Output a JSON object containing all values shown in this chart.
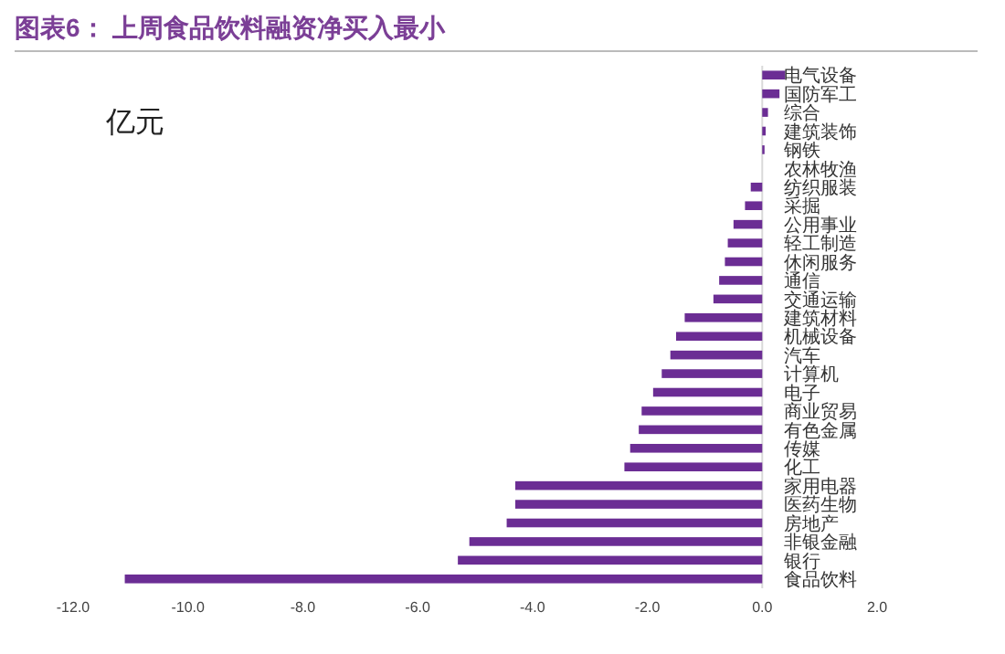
{
  "chart_data": {
    "type": "bar",
    "orientation": "horizontal",
    "title": "图表6： 上周食品饮料融资净买入最小",
    "annotations": [
      "亿元"
    ],
    "categories": [
      "电气设备",
      "国防军工",
      "综合",
      "建筑装饰",
      "钢铁",
      "农林牧渔",
      "纺织服装",
      "采掘",
      "公用事业",
      "轻工制造",
      "休闲服务",
      "通信",
      "交通运输",
      "建筑材料",
      "机械设备",
      "汽车",
      "计算机",
      "电子",
      "商业贸易",
      "有色金属",
      "传媒",
      "化工",
      "家用电器",
      "医药生物",
      "房地产",
      "非银金融",
      "银行",
      "食品饮料"
    ],
    "values": [
      0.4,
      0.3,
      0.1,
      0.06,
      0.04,
      null,
      -0.2,
      -0.3,
      -0.5,
      -0.6,
      -0.65,
      -0.75,
      -0.85,
      -1.35,
      -1.5,
      -1.6,
      -1.75,
      -1.9,
      -2.1,
      -2.15,
      -2.3,
      -2.4,
      -4.3,
      -4.3,
      -4.45,
      -5.1,
      -5.3,
      -11.1
    ],
    "color": "#6b2d94",
    "xlim": [
      -12,
      2
    ],
    "xticks": [
      {
        "value": -12,
        "label": "-12.0"
      },
      {
        "value": -10,
        "label": "-10.0"
      },
      {
        "value": -8,
        "label": "-8.0"
      },
      {
        "value": -6,
        "label": "-6.0"
      },
      {
        "value": -4,
        "label": "-4.0"
      },
      {
        "value": -2,
        "label": "-2.0"
      },
      {
        "value": 0,
        "label": "0.0"
      },
      {
        "value": 2,
        "label": "2.0"
      }
    ],
    "grid": false
  }
}
